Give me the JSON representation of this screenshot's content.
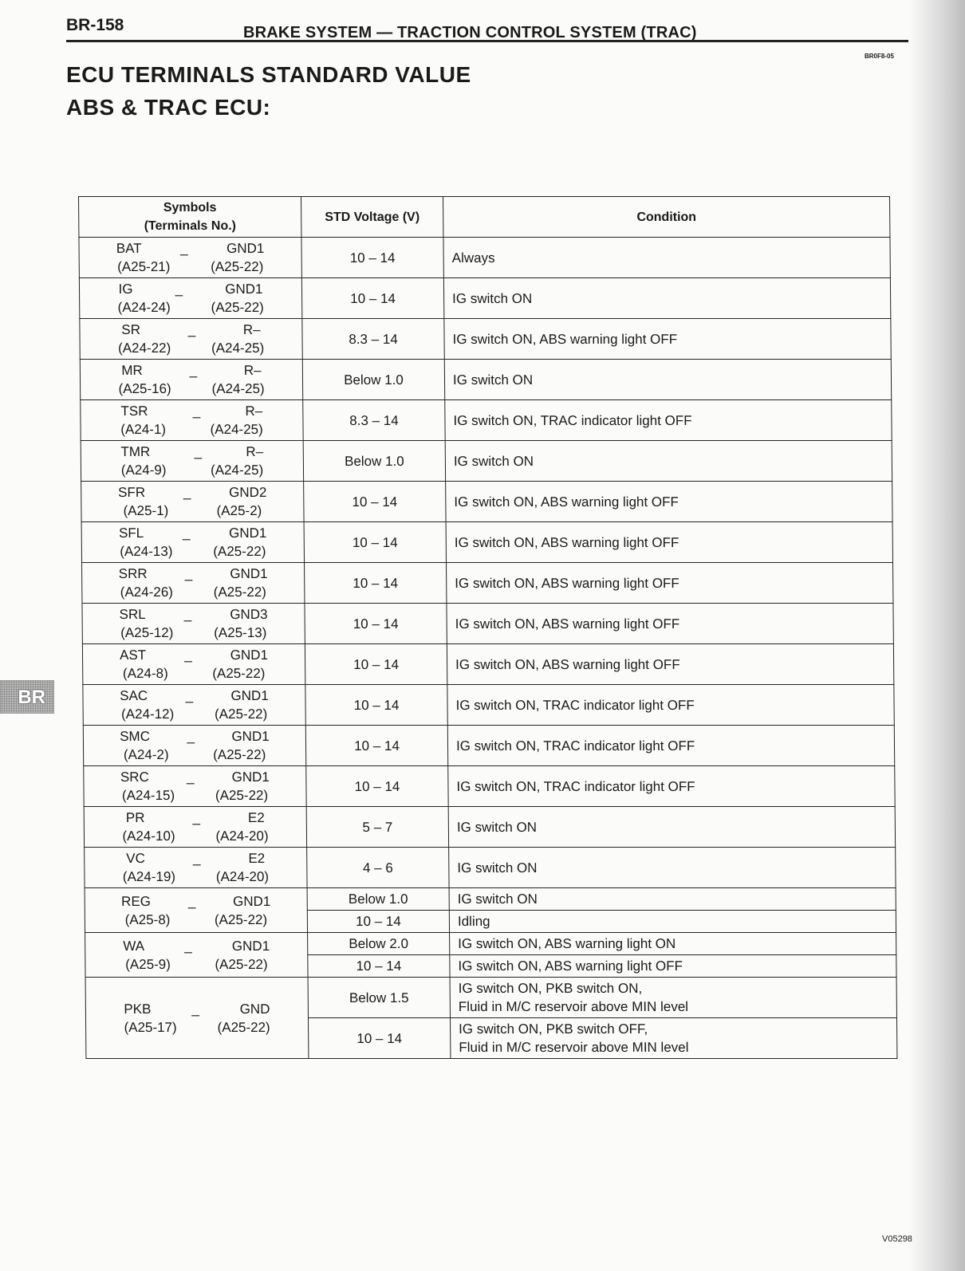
{
  "page_number": "BR-158",
  "running_header": "BRAKE SYSTEM — TRACTION CONTROL SYSTEM (TRAC)",
  "doc_code": "BR0F8-05",
  "title": "ECU TERMINALS STANDARD VALUE",
  "subtitle": "ABS & TRAC ECU:",
  "side_tab": "BR",
  "figure_code": "V05298",
  "table": {
    "headers": [
      "Symbols\n(Terminals No.)",
      "STD Voltage (V)",
      "Condition"
    ],
    "rows": [
      {
        "a": "BAT",
        "b": "GND1",
        "ta": "(A25-21)",
        "tb": "(A25-22)",
        "values": [
          {
            "v": "10 – 14",
            "c": "Always"
          }
        ]
      },
      {
        "a": "IG",
        "b": "GND1",
        "ta": "(A24-24)",
        "tb": "(A25-22)",
        "values": [
          {
            "v": "10 – 14",
            "c": "IG switch ON"
          }
        ]
      },
      {
        "a": "SR",
        "b": "R–",
        "ta": "(A24-22)",
        "tb": "(A24-25)",
        "values": [
          {
            "v": "8.3 – 14",
            "c": "IG switch ON, ABS warning light OFF"
          }
        ]
      },
      {
        "a": "MR",
        "b": "R–",
        "ta": "(A25-16)",
        "tb": "(A24-25)",
        "values": [
          {
            "v": "Below 1.0",
            "c": "IG switch ON"
          }
        ]
      },
      {
        "a": "TSR",
        "b": "R–",
        "ta": "(A24-1)",
        "tb": "(A24-25)",
        "values": [
          {
            "v": "8.3 – 14",
            "c": "IG switch ON, TRAC indicator light OFF"
          }
        ]
      },
      {
        "a": "TMR",
        "b": "R–",
        "ta": "(A24-9)",
        "tb": "(A24-25)",
        "values": [
          {
            "v": "Below 1.0",
            "c": "IG switch ON"
          }
        ]
      },
      {
        "a": "SFR",
        "b": "GND2",
        "ta": "(A25-1)",
        "tb": "(A25-2)",
        "values": [
          {
            "v": "10 – 14",
            "c": "IG switch ON, ABS warning light OFF"
          }
        ]
      },
      {
        "a": "SFL",
        "b": "GND1",
        "ta": "(A24-13)",
        "tb": "(A25-22)",
        "values": [
          {
            "v": "10 – 14",
            "c": "IG switch ON, ABS warning light OFF"
          }
        ]
      },
      {
        "a": "SRR",
        "b": "GND1",
        "ta": "(A24-26)",
        "tb": "(A25-22)",
        "values": [
          {
            "v": "10 – 14",
            "c": "IG switch ON, ABS warning light OFF"
          }
        ]
      },
      {
        "a": "SRL",
        "b": "GND3",
        "ta": "(A25-12)",
        "tb": "(A25-13)",
        "values": [
          {
            "v": "10 – 14",
            "c": "IG switch ON, ABS warning light OFF"
          }
        ]
      },
      {
        "a": "AST",
        "b": "GND1",
        "ta": "(A24-8)",
        "tb": "(A25-22)",
        "values": [
          {
            "v": "10 – 14",
            "c": "IG switch ON, ABS warning light OFF"
          }
        ]
      },
      {
        "a": "SAC",
        "b": "GND1",
        "ta": "(A24-12)",
        "tb": "(A25-22)",
        "values": [
          {
            "v": "10 – 14",
            "c": "IG switch ON, TRAC indicator light OFF"
          }
        ]
      },
      {
        "a": "SMC",
        "b": "GND1",
        "ta": "(A24-2)",
        "tb": "(A25-22)",
        "values": [
          {
            "v": "10 – 14",
            "c": "IG switch ON, TRAC indicator light OFF"
          }
        ]
      },
      {
        "a": "SRC",
        "b": "GND1",
        "ta": "(A24-15)",
        "tb": "(A25-22)",
        "values": [
          {
            "v": "10 – 14",
            "c": "IG switch ON, TRAC indicator light OFF"
          }
        ]
      },
      {
        "a": "PR",
        "b": "E2",
        "ta": "(A24-10)",
        "tb": "(A24-20)",
        "values": [
          {
            "v": "5 – 7",
            "c": "IG switch ON"
          }
        ]
      },
      {
        "a": "VC",
        "b": "E2",
        "ta": "(A24-19)",
        "tb": "(A24-20)",
        "values": [
          {
            "v": "4 – 6",
            "c": "IG switch ON"
          }
        ]
      },
      {
        "a": "REG",
        "b": "GND1",
        "ta": "(A25-8)",
        "tb": "(A25-22)",
        "values": [
          {
            "v": "Below 1.0",
            "c": "IG switch ON"
          },
          {
            "v": "10 – 14",
            "c": "Idling"
          }
        ]
      },
      {
        "a": "WA",
        "b": "GND1",
        "ta": "(A25-9)",
        "tb": "(A25-22)",
        "values": [
          {
            "v": "Below 2.0",
            "c": "IG switch ON, ABS warning light ON"
          },
          {
            "v": "10 – 14",
            "c": "IG switch ON, ABS warning light OFF"
          }
        ]
      },
      {
        "a": "PKB",
        "b": "GND",
        "ta": "(A25-17)",
        "tb": "(A25-22)",
        "values": [
          {
            "v": "Below 1.5",
            "c": "IG switch ON, PKB switch ON,\nFluid in M/C reservoir above MIN level"
          },
          {
            "v": "10 – 14",
            "c": "IG switch ON, PKB switch OFF,\nFluid in M/C reservoir above MIN level"
          }
        ]
      }
    ]
  }
}
